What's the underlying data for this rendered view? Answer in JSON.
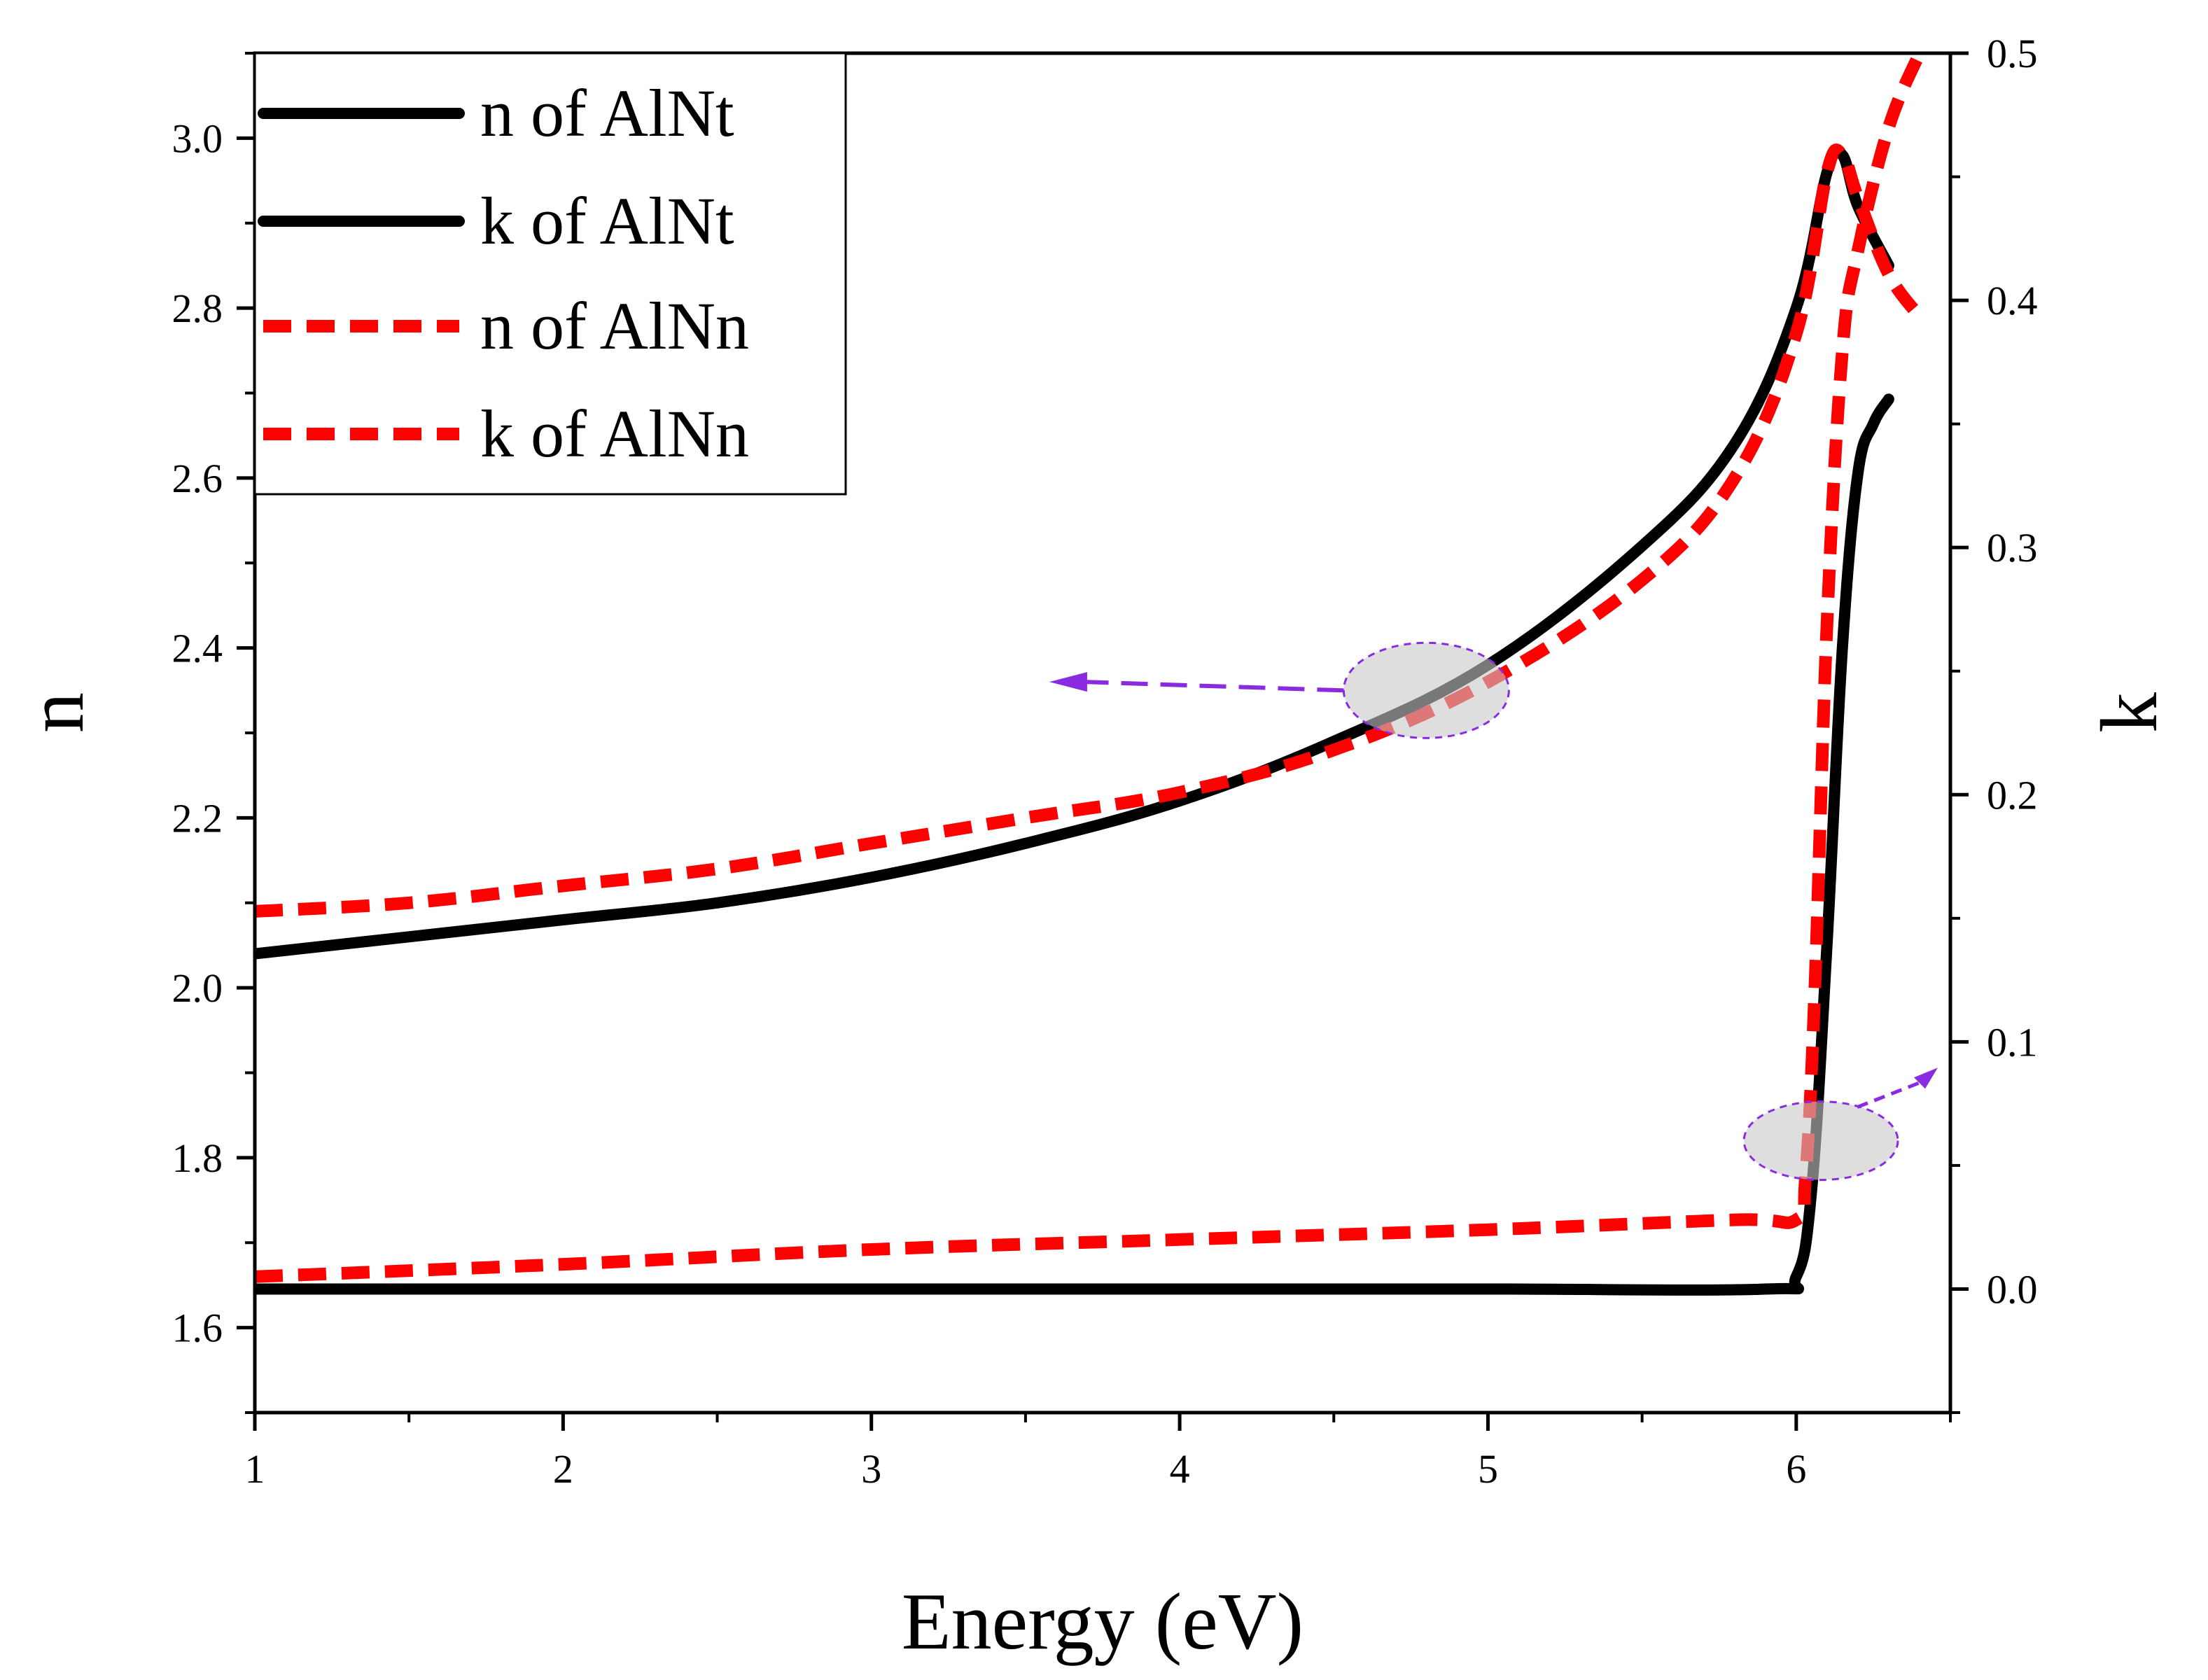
{
  "chart_data": {
    "type": "line",
    "title": "",
    "xlabel": "Energy (eV)",
    "ylabel_left": "n",
    "ylabel_right": "k",
    "xlim": [
      1,
      6.5
    ],
    "ylim_left": [
      1.5,
      3.1
    ],
    "ylim_right": [
      -0.05,
      0.5
    ],
    "x_ticks": [
      1,
      2,
      3,
      4,
      5,
      6
    ],
    "x_tick_labels": [
      "1",
      "2",
      "3",
      "4",
      "5",
      "6"
    ],
    "y_left_ticks": [
      1.6,
      1.8,
      2.0,
      2.2,
      2.4,
      2.6,
      2.8,
      3.0
    ],
    "y_left_tick_labels": [
      "1.6",
      "1.8",
      "2.0",
      "2.2",
      "2.4",
      "2.6",
      "2.8",
      "3.0"
    ],
    "y_right_ticks": [
      0.0,
      0.1,
      0.2,
      0.3,
      0.4,
      0.5
    ],
    "y_right_tick_labels": [
      "0.0",
      "0.1",
      "0.2",
      "0.3",
      "0.4",
      "0.5"
    ],
    "grid": false,
    "legend_position": "top-left",
    "colors": {
      "AlNt": "#000000",
      "AlNn": "#ff0000",
      "annotation": "#8a2be2",
      "highlight": "#c8c8c8"
    },
    "series": [
      {
        "name": "n of AlNt",
        "axis": "left",
        "style": "solid",
        "x": [
          1.0,
          1.5,
          2.0,
          2.5,
          3.0,
          3.5,
          4.0,
          4.5,
          5.0,
          5.5,
          5.8,
          6.0,
          6.1,
          6.15,
          6.2,
          6.3
        ],
        "y": [
          2.04,
          2.06,
          2.08,
          2.1,
          2.13,
          2.17,
          2.22,
          2.29,
          2.38,
          2.52,
          2.64,
          2.8,
          2.96,
          2.98,
          2.92,
          2.85
        ]
      },
      {
        "name": "k of AlNt",
        "axis": "right",
        "style": "solid",
        "x": [
          1.0,
          2.0,
          3.0,
          4.0,
          5.0,
          5.9,
          6.0,
          6.05,
          6.1,
          6.15,
          6.2,
          6.25,
          6.3
        ],
        "y": [
          0.0,
          0.0,
          0.0,
          0.0,
          0.0,
          0.0,
          0.005,
          0.04,
          0.14,
          0.26,
          0.33,
          0.35,
          0.36
        ]
      },
      {
        "name": "n of AlNn",
        "axis": "left",
        "style": "dashed",
        "x": [
          1.0,
          1.5,
          2.0,
          2.5,
          3.0,
          3.5,
          4.0,
          4.5,
          5.0,
          5.5,
          5.8,
          6.0,
          6.1,
          6.15,
          6.2,
          6.3,
          6.4
        ],
        "y": [
          2.09,
          2.1,
          2.12,
          2.14,
          2.17,
          2.2,
          2.23,
          2.28,
          2.36,
          2.48,
          2.6,
          2.77,
          2.96,
          2.98,
          2.93,
          2.84,
          2.79
        ]
      },
      {
        "name": "k of AlNn",
        "axis": "right",
        "style": "dashed",
        "x": [
          1.0,
          2.0,
          3.0,
          4.0,
          5.0,
          5.8,
          6.0,
          6.03,
          6.06,
          6.1,
          6.15,
          6.2,
          6.3,
          6.4
        ],
        "y": [
          0.005,
          0.01,
          0.016,
          0.02,
          0.024,
          0.028,
          0.028,
          0.045,
          0.12,
          0.27,
          0.38,
          0.42,
          0.47,
          0.5
        ]
      }
    ],
    "annotations": [
      {
        "type": "ellipse-arrow",
        "target": "n curves",
        "at": [
          4.8,
          2.35
        ],
        "arrow_to": [
          3.6,
          2.36
        ],
        "points_to_axis": "left"
      },
      {
        "type": "ellipse-arrow",
        "target": "k curves",
        "at": [
          6.08,
          1.82
        ],
        "arrow_to": [
          6.4,
          1.85
        ],
        "points_to_axis": "right"
      }
    ]
  }
}
